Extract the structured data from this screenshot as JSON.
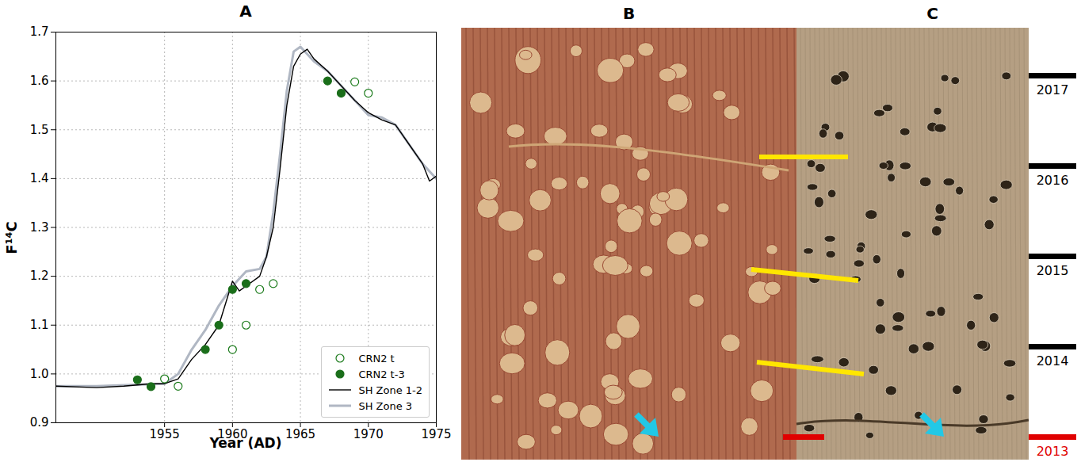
{
  "chart_data": {
    "type": "line",
    "title": "A",
    "x_label": "Year (AD)",
    "y_label": "F¹⁴C",
    "xlim": [
      1947,
      1975
    ],
    "xticks": [
      1955,
      1960,
      1965,
      1970,
      1975
    ],
    "ylim": [
      0.9,
      1.7
    ],
    "yticks": [
      0.9,
      {
        "value": 1,
        "label": "1.0"
      },
      1.1,
      1.2,
      1.3,
      1.4,
      1.5,
      1.6,
      1.7
    ],
    "grid": true,
    "legend": "lower right",
    "series": [
      {
        "name": "CRN2 t",
        "type": "scatter",
        "marker": "open",
        "color": "#1a7a1a",
        "x": [
          1955,
          1956,
          1960,
          1961,
          1962,
          1963,
          1969,
          1970
        ],
        "values": [
          0.99,
          0.975,
          1.05,
          1.1,
          1.173,
          1.185,
          1.598,
          1.575
        ]
      },
      {
        "name": "CRN2 t-3",
        "type": "scatter",
        "marker": "filled",
        "color": "#1a6e1a",
        "x": [
          1953,
          1954,
          1958,
          1959,
          1960,
          1961,
          1967,
          1968
        ],
        "values": [
          0.988,
          0.974,
          1.05,
          1.1,
          1.173,
          1.185,
          1.6,
          1.575
        ]
      },
      {
        "name": "SH Zone 1-2",
        "type": "line",
        "color": "#000000",
        "x": [
          1947,
          1950,
          1952,
          1954,
          1955,
          1956,
          1957,
          1958,
          1959,
          1960,
          1960.5,
          1961,
          1962,
          1962.5,
          1963,
          1963.5,
          1964,
          1964.5,
          1965,
          1965.5,
          1966,
          1967,
          1968,
          1969,
          1970,
          1971,
          1972,
          1973,
          1974,
          1974.5,
          1975
        ],
        "values": [
          0.975,
          0.972,
          0.975,
          0.98,
          0.98,
          0.99,
          1.03,
          1.06,
          1.1,
          1.19,
          1.17,
          1.18,
          1.2,
          1.24,
          1.3,
          1.42,
          1.55,
          1.63,
          1.655,
          1.665,
          1.645,
          1.62,
          1.59,
          1.56,
          1.535,
          1.52,
          1.51,
          1.47,
          1.43,
          1.395,
          1.405
        ]
      },
      {
        "name": "SH Zone 3",
        "type": "line",
        "color": "#b0b7c3",
        "x": [
          1947,
          1950,
          1955,
          1956,
          1957,
          1958,
          1959,
          1960,
          1961,
          1962,
          1962.5,
          1963,
          1963.5,
          1964,
          1964.5,
          1965,
          1965.5,
          1966,
          1967,
          1968,
          1969,
          1970,
          1971,
          1972,
          1973,
          1974,
          1975
        ],
        "values": [
          0.975,
          0.975,
          0.98,
          1.0,
          1.05,
          1.09,
          1.14,
          1.18,
          1.21,
          1.215,
          1.24,
          1.33,
          1.45,
          1.58,
          1.66,
          1.67,
          1.655,
          1.64,
          1.62,
          1.59,
          1.56,
          1.53,
          1.525,
          1.51,
          1.47,
          1.43,
          1.4
        ]
      }
    ]
  },
  "image_panels": [
    {
      "title": "B"
    },
    {
      "title": "C",
      "year_marks": [
        {
          "label": "2017",
          "color": "#000000"
        },
        {
          "label": "2016",
          "color": "#000000"
        },
        {
          "label": "2015",
          "color": "#000000"
        },
        {
          "label": "2014",
          "color": "#000000"
        },
        {
          "label": "2013",
          "color": "#e00000"
        }
      ]
    }
  ]
}
